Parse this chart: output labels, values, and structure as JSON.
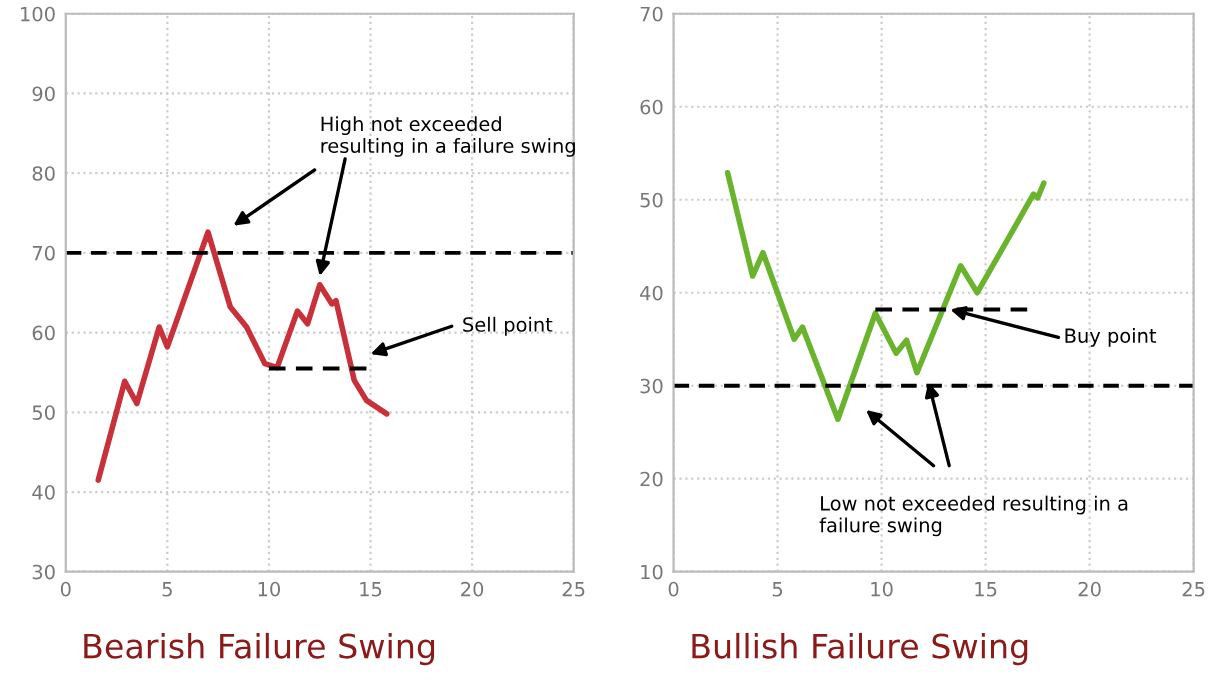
{
  "chart_data": [
    {
      "type": "line",
      "title": "Bearish Failure Swing",
      "xlim": [
        0,
        25
      ],
      "ylim": [
        30,
        100
      ],
      "xticks": [
        0,
        5,
        10,
        15,
        20,
        25
      ],
      "yticks": [
        30,
        40,
        50,
        60,
        70,
        80,
        90,
        100
      ],
      "grid": true,
      "legend": false,
      "series": [
        {
          "color": "#c8303a",
          "x": [
            1.6,
            2.9,
            3.5,
            4.6,
            5.0,
            7.0,
            8.1,
            8.9,
            9.8,
            10.4,
            11.4,
            11.9,
            12.5,
            13.1,
            13.3,
            14.2,
            14.8,
            15.8
          ],
          "values": [
            41.5,
            53.9,
            51.1,
            60.7,
            58.2,
            72.6,
            63.2,
            60.7,
            56.1,
            55.6,
            62.7,
            61.1,
            66.0,
            63.6,
            64.0,
            54.0,
            51.5,
            49.8
          ]
        },
        {
          "color": "#000000",
          "line_style": "dashed",
          "x": [
            10,
            14.8
          ],
          "values": [
            55.5,
            55.5
          ]
        }
      ],
      "ref_lines": [
        {
          "axis": "y",
          "value": 70,
          "color": "#000000",
          "line_style": "dashed"
        }
      ],
      "annotations": [
        "High not exceeded\nresulting in a failure swing",
        "Sell point"
      ]
    },
    {
      "type": "line",
      "title": "Bullish Failure Swing",
      "xlim": [
        0,
        25
      ],
      "ylim": [
        10,
        70
      ],
      "xticks": [
        0,
        5,
        10,
        15,
        20,
        25
      ],
      "yticks": [
        10,
        20,
        30,
        40,
        50,
        60,
        70
      ],
      "grid": true,
      "legend": false,
      "series": [
        {
          "color": "#6ab42d",
          "x": [
            2.6,
            3.8,
            4.3,
            5.8,
            6.2,
            7.9,
            9.7,
            10.7,
            11.2,
            11.7,
            13.8,
            14.6,
            17.3,
            17.5,
            17.8
          ],
          "values": [
            52.9,
            41.8,
            44.3,
            35.0,
            36.3,
            26.4,
            37.8,
            33.5,
            34.9,
            31.4,
            42.9,
            40.0,
            50.6,
            50.2,
            51.8
          ]
        },
        {
          "color": "#000000",
          "line_style": "dashed",
          "x": [
            9.7,
            17.0
          ],
          "values": [
            38.2,
            38.2
          ]
        }
      ],
      "ref_lines": [
        {
          "axis": "y",
          "value": 30,
          "color": "#000000",
          "line_style": "dashed"
        }
      ],
      "annotations": [
        {
          "text": "Buy point",
          "x": 13.3,
          "y": 38.2
        },
        "Low not exceeded resulting in a\nfailure swing"
      ]
    }
  ]
}
